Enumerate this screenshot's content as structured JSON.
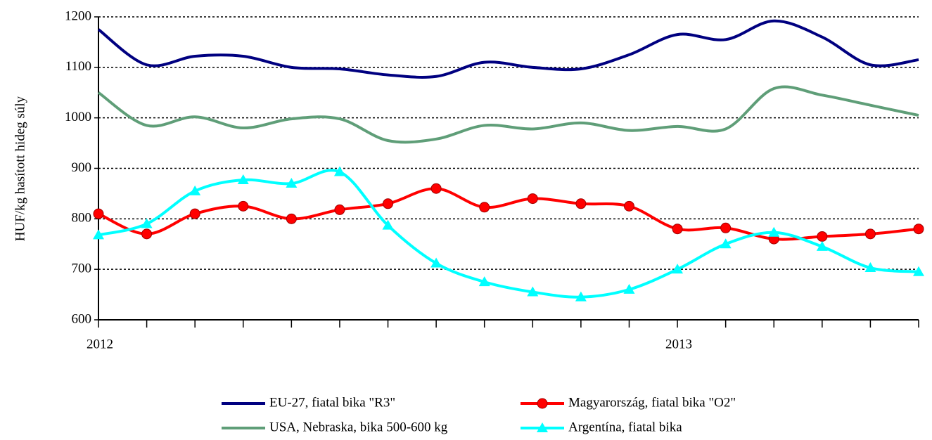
{
  "chart_data": {
    "type": "line",
    "y_label": "HUF/kg hasított hideg súly",
    "categories": [
      "2012",
      null,
      null,
      null,
      null,
      null,
      null,
      null,
      null,
      null,
      null,
      null,
      "2013",
      null,
      null,
      null,
      null,
      null
    ],
    "ylim": [
      600,
      1200
    ],
    "yticks": [
      600,
      700,
      800,
      900,
      1000,
      1100,
      1200
    ],
    "grid": true,
    "series": [
      {
        "name": "EU-27, fiatal bika \"R3\"",
        "color": "#000080",
        "marker": "none",
        "values": [
          1175,
          1105,
          1122,
          1122,
          1100,
          1097,
          1085,
          1082,
          1110,
          1100,
          1097,
          1125,
          1165,
          1155,
          1192,
          1160,
          1105,
          1115
        ]
      },
      {
        "name": "Magyarország, fiatal bika \"O2\"",
        "color": "#ff0000",
        "marker": "circle",
        "values": [
          810,
          770,
          810,
          825,
          800,
          818,
          830,
          860,
          823,
          840,
          830,
          825,
          780,
          782,
          760,
          765,
          770,
          780
        ]
      },
      {
        "name": "USA, Nebraska, bika 500-600 kg",
        "color": "#5f9e78",
        "marker": "none",
        "values": [
          1050,
          985,
          1002,
          980,
          998,
          998,
          955,
          958,
          985,
          978,
          990,
          975,
          983,
          978,
          1058,
          1045,
          1025,
          1005
        ]
      },
      {
        "name": "Argentína, fiatal bika",
        "color": "#00ffff",
        "marker": "triangle",
        "values": [
          768,
          790,
          855,
          877,
          870,
          893,
          787,
          712,
          675,
          655,
          645,
          660,
          700,
          750,
          773,
          745,
          703,
          695
        ]
      }
    ]
  }
}
